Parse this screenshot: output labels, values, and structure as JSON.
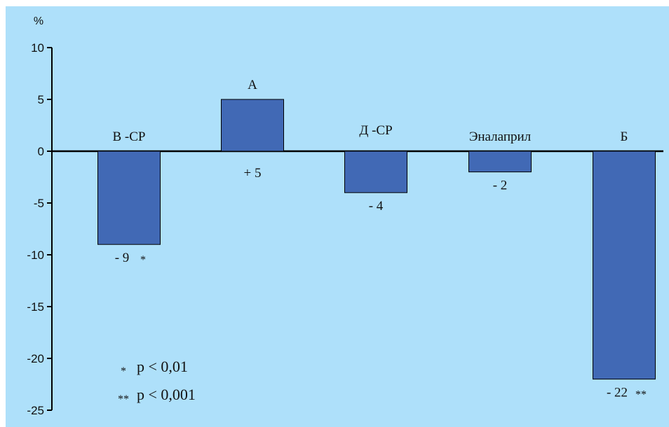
{
  "chart_data": {
    "type": "bar",
    "ylabel": "%",
    "ylim": [
      -25,
      10
    ],
    "yticks": [
      10,
      5,
      0,
      -5,
      -10,
      -15,
      -20,
      -25
    ],
    "categories": [
      "В -СР",
      "А",
      "Д -СР",
      "Эналаприл",
      "Б"
    ],
    "values": [
      -9,
      5,
      -4,
      -2,
      -22
    ],
    "data_labels": [
      "- 9",
      "+ 5",
      "- 4",
      "- 2",
      "- 22"
    ],
    "significance": [
      "*",
      "",
      "",
      "",
      "**"
    ],
    "bar_color": "#4169b5",
    "background_color": "#aee0fa",
    "grid": false,
    "legend": [
      {
        "mark": "*",
        "text": "p <  0,01"
      },
      {
        "mark": "**",
        "text": "p < 0,001"
      }
    ]
  }
}
